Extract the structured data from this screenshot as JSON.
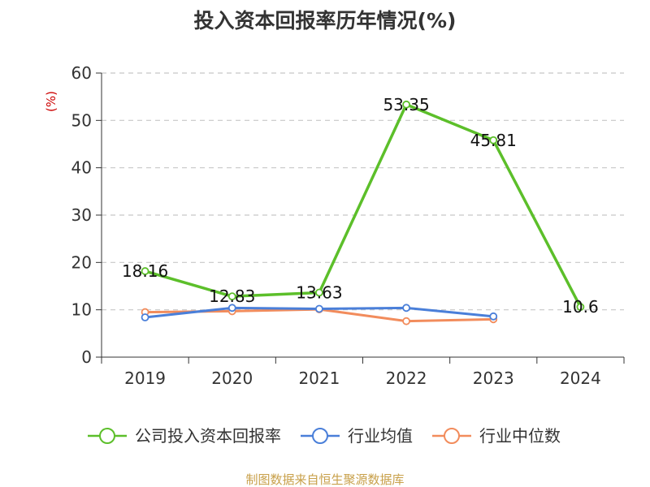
{
  "chart_data": {
    "type": "line",
    "title": "投入资本回报率历年情况(%)",
    "ylabel": "(%)",
    "ylim": [
      0,
      60
    ],
    "yticks": [
      0,
      10,
      20,
      30,
      40,
      50,
      60
    ],
    "categories": [
      "2019",
      "2020",
      "2021",
      "2022",
      "2023",
      "2024"
    ],
    "grid": true,
    "legend_position": "bottom",
    "series": [
      {
        "name": "公司投入资本回报率",
        "color": "#5cbf2a",
        "values": [
          18.16,
          12.83,
          13.63,
          53.35,
          45.81,
          10.6
        ],
        "labels": [
          "18.16",
          "12.83",
          "13.63",
          "53.35",
          "45.81",
          "10.6"
        ]
      },
      {
        "name": "行业均值",
        "color": "#4a7fd9",
        "values": [
          8.4,
          10.4,
          10.2,
          10.4,
          8.6,
          null
        ]
      },
      {
        "name": "行业中位数",
        "color": "#f28c5c",
        "values": [
          9.5,
          9.7,
          10.1,
          7.6,
          8.0,
          null
        ]
      }
    ],
    "source": "制图数据来自恒生聚源数据库"
  }
}
